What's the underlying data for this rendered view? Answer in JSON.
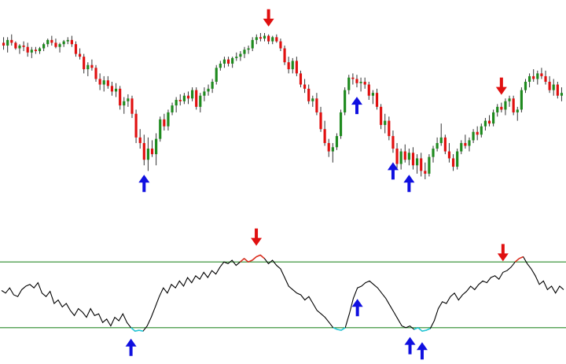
{
  "chart_data": [
    {
      "type": "candlestick",
      "title": "",
      "colors": {
        "up": "#1e8a1e",
        "down": "#e01010",
        "wick": "#333333",
        "buy_arrow": "#1010e0",
        "sell_arrow": "#e01010"
      },
      "candles": [
        [
          96,
          100,
          91,
          94
        ],
        [
          94,
          100,
          89,
          98
        ],
        [
          98,
          102,
          94,
          96
        ],
        [
          96,
          97,
          91,
          92
        ],
        [
          92,
          95,
          88,
          94
        ],
        [
          94,
          97,
          90,
          93
        ],
        [
          93,
          96,
          86,
          89
        ],
        [
          89,
          93,
          85,
          91
        ],
        [
          91,
          93,
          88,
          90
        ],
        [
          90,
          93,
          88,
          92
        ],
        [
          92,
          96,
          90,
          95
        ],
        [
          95,
          99,
          93,
          98
        ],
        [
          98,
          101,
          94,
          96
        ],
        [
          96,
          99,
          92,
          93
        ],
        [
          93,
          96,
          89,
          95
        ],
        [
          95,
          98,
          93,
          97
        ],
        [
          97,
          100,
          95,
          98
        ],
        [
          98,
          101,
          93,
          95
        ],
        [
          95,
          97,
          86,
          88
        ],
        [
          88,
          92,
          84,
          86
        ],
        [
          86,
          88,
          74,
          77
        ],
        [
          77,
          82,
          72,
          80
        ],
        [
          80,
          84,
          76,
          78
        ],
        [
          78,
          80,
          68,
          70
        ],
        [
          70,
          74,
          62,
          66
        ],
        [
          66,
          72,
          61,
          69
        ],
        [
          69,
          72,
          63,
          65
        ],
        [
          65,
          68,
          58,
          61
        ],
        [
          61,
          67,
          57,
          63
        ],
        [
          63,
          65,
          48,
          51
        ],
        [
          51,
          57,
          45,
          54
        ],
        [
          54,
          59,
          50,
          56
        ],
        [
          56,
          58,
          42,
          45
        ],
        [
          45,
          48,
          24,
          28
        ],
        [
          28,
          34,
          20,
          24
        ],
        [
          24,
          30,
          8,
          12
        ],
        [
          12,
          28,
          4,
          20
        ],
        [
          20,
          26,
          14,
          16
        ],
        [
          16,
          31,
          8,
          27
        ],
        [
          27,
          43,
          25,
          41
        ],
        [
          41,
          45,
          33,
          36
        ],
        [
          36,
          48,
          33,
          46
        ],
        [
          46,
          53,
          44,
          51
        ],
        [
          51,
          57,
          46,
          55
        ],
        [
          55,
          59,
          51,
          54
        ],
        [
          54,
          60,
          52,
          58
        ],
        [
          58,
          61,
          52,
          56
        ],
        [
          56,
          64,
          54,
          62
        ],
        [
          62,
          64,
          48,
          50
        ],
        [
          50,
          60,
          46,
          58
        ],
        [
          58,
          64,
          54,
          61
        ],
        [
          61,
          66,
          58,
          63
        ],
        [
          63,
          70,
          60,
          68
        ],
        [
          68,
          80,
          66,
          78
        ],
        [
          78,
          83,
          76,
          81
        ],
        [
          81,
          86,
          78,
          84
        ],
        [
          84,
          86,
          79,
          81
        ],
        [
          81,
          86,
          78,
          85
        ],
        [
          85,
          89,
          83,
          86
        ],
        [
          86,
          90,
          83,
          88
        ],
        [
          88,
          93,
          85,
          91
        ],
        [
          91,
          94,
          88,
          92
        ],
        [
          92,
          100,
          90,
          98
        ],
        [
          98,
          102,
          95,
          100
        ],
        [
          100,
          103,
          97,
          99
        ],
        [
          99,
          103,
          97,
          101
        ],
        [
          101,
          102,
          95,
          97
        ],
        [
          97,
          101,
          95,
          100
        ],
        [
          100,
          102,
          96,
          97
        ],
        [
          97,
          99,
          90,
          92
        ],
        [
          92,
          94,
          80,
          82
        ],
        [
          82,
          86,
          74,
          77
        ],
        [
          77,
          85,
          74,
          83
        ],
        [
          83,
          86,
          72,
          74
        ],
        [
          74,
          76,
          64,
          66
        ],
        [
          66,
          70,
          60,
          63
        ],
        [
          63,
          66,
          52,
          54
        ],
        [
          54,
          58,
          50,
          56
        ],
        [
          56,
          60,
          44,
          46
        ],
        [
          46,
          50,
          32,
          34
        ],
        [
          34,
          40,
          22,
          24
        ],
        [
          24,
          27,
          14,
          18
        ],
        [
          18,
          24,
          10,
          21
        ],
        [
          21,
          31,
          19,
          29
        ],
        [
          29,
          48,
          27,
          46
        ],
        [
          46,
          64,
          44,
          62
        ],
        [
          62,
          73,
          59,
          71
        ],
        [
          71,
          74,
          66,
          70
        ],
        [
          70,
          73,
          64,
          67
        ],
        [
          67,
          71,
          61,
          68
        ],
        [
          68,
          71,
          63,
          66
        ],
        [
          66,
          68,
          55,
          58
        ],
        [
          58,
          62,
          52,
          60
        ],
        [
          60,
          63,
          48,
          50
        ],
        [
          50,
          52,
          34,
          37
        ],
        [
          37,
          45,
          31,
          40
        ],
        [
          40,
          43,
          26,
          29
        ],
        [
          29,
          33,
          17,
          20
        ],
        [
          20,
          24,
          6,
          9
        ],
        [
          9,
          20,
          5,
          18
        ],
        [
          18,
          23,
          10,
          12
        ],
        [
          12,
          20,
          8,
          17
        ],
        [
          17,
          21,
          5,
          8
        ],
        [
          8,
          16,
          2,
          13
        ],
        [
          13,
          17,
          0,
          4
        ],
        [
          4,
          10,
          -2,
          2
        ],
        [
          2,
          16,
          0,
          14
        ],
        [
          14,
          22,
          10,
          20
        ],
        [
          20,
          28,
          18,
          24
        ],
        [
          24,
          38,
          22,
          28
        ],
        [
          28,
          30,
          16,
          18
        ],
        [
          18,
          24,
          10,
          13
        ],
        [
          13,
          16,
          4,
          7
        ],
        [
          7,
          20,
          5,
          18
        ],
        [
          18,
          26,
          16,
          24
        ],
        [
          24,
          30,
          20,
          22
        ],
        [
          22,
          28,
          18,
          26
        ],
        [
          26,
          34,
          24,
          32
        ],
        [
          32,
          36,
          26,
          30
        ],
        [
          30,
          38,
          28,
          36
        ],
        [
          36,
          42,
          33,
          40
        ],
        [
          40,
          44,
          36,
          38
        ],
        [
          38,
          48,
          36,
          46
        ],
        [
          46,
          52,
          43,
          50
        ],
        [
          50,
          53,
          46,
          48
        ],
        [
          48,
          56,
          44,
          54
        ],
        [
          54,
          58,
          50,
          56
        ],
        [
          56,
          58,
          44,
          46
        ],
        [
          46,
          50,
          40,
          48
        ],
        [
          48,
          64,
          46,
          62
        ],
        [
          62,
          70,
          60,
          68
        ],
        [
          68,
          74,
          64,
          72
        ],
        [
          72,
          77,
          68,
          70
        ],
        [
          70,
          76,
          66,
          74
        ],
        [
          74,
          78,
          70,
          72
        ],
        [
          72,
          76,
          66,
          68
        ],
        [
          68,
          72,
          60,
          62
        ],
        [
          62,
          70,
          58,
          66
        ],
        [
          66,
          68,
          56,
          58
        ],
        [
          58,
          64,
          54,
          60
        ]
      ],
      "buy_signal_indices": [
        35,
        88,
        97,
        101
      ],
      "sell_signal_indices": [
        66,
        124
      ]
    },
    {
      "type": "line",
      "title": "",
      "colors": {
        "line": "#000000",
        "overbought_highlight": "#e03020",
        "oversold_highlight": "#20c8d8",
        "bands": "#2a8a2a"
      },
      "upper_band": 88,
      "lower_band": 12,
      "values": [
        55,
        52,
        58,
        50,
        48,
        56,
        60,
        62,
        58,
        64,
        52,
        48,
        54,
        40,
        44,
        36,
        40,
        32,
        26,
        34,
        30,
        24,
        34,
        26,
        28,
        18,
        22,
        14,
        24,
        20,
        28,
        18,
        12,
        8,
        9,
        8,
        14,
        24,
        36,
        48,
        58,
        52,
        62,
        58,
        66,
        60,
        70,
        64,
        72,
        68,
        76,
        70,
        78,
        74,
        82,
        88,
        86,
        90,
        84,
        88,
        92,
        88,
        90,
        94,
        96,
        92,
        86,
        90,
        84,
        80,
        70,
        60,
        56,
        52,
        50,
        44,
        48,
        40,
        32,
        28,
        24,
        18,
        12,
        10,
        9,
        12,
        28,
        46,
        58,
        60,
        64,
        66,
        62,
        58,
        52,
        46,
        38,
        30,
        22,
        14,
        12,
        14,
        10,
        12,
        8,
        9,
        11,
        20,
        34,
        42,
        40,
        48,
        52,
        44,
        50,
        54,
        60,
        56,
        62,
        66,
        64,
        70,
        72,
        68,
        76,
        78,
        82,
        88,
        92,
        94,
        86,
        80,
        72,
        62,
        66,
        56,
        60,
        52,
        60,
        56
      ],
      "buy_signal_indices": [
        32,
        88,
        101,
        104
      ],
      "sell_signal_indices": [
        63,
        124
      ]
    }
  ]
}
